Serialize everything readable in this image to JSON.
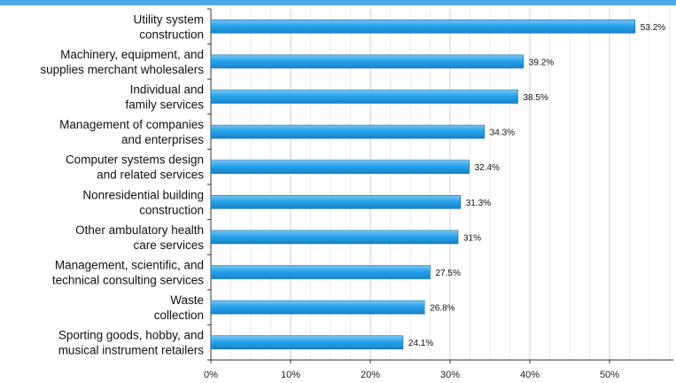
{
  "chart_data": {
    "type": "bar",
    "orientation": "horizontal",
    "categories": [
      [
        "Utility system",
        "construction"
      ],
      [
        "Machinery, equipment, and",
        "supplies merchant wholesalers"
      ],
      [
        "Individual and",
        "family services"
      ],
      [
        "Management of companies",
        "and enterprises"
      ],
      [
        "Computer systems design",
        "and related services"
      ],
      [
        "Nonresidential building",
        "construction"
      ],
      [
        "Other ambulatory health",
        "care services"
      ],
      [
        "Management, scientific, and",
        "technical consulting services"
      ],
      [
        "Waste",
        "collection"
      ],
      [
        "Sporting goods, hobby, and",
        "musical instrument retailers"
      ]
    ],
    "values": [
      53.2,
      39.2,
      38.5,
      34.3,
      32.4,
      31.3,
      31,
      27.5,
      26.8,
      24.1
    ],
    "data_labels": [
      "53.2%",
      "39.2%",
      "38.5%",
      "34.3%",
      "32.4%",
      "31.3%",
      "31%",
      "27.5%",
      "26.8%",
      "24.1%"
    ],
    "x_ticks": [
      "0%",
      "10%",
      "20%",
      "30%",
      "40%",
      "50%"
    ],
    "xlim": [
      0,
      58
    ],
    "grid": "vertical",
    "legend": "none",
    "bar_color": "#1e9ae6",
    "bar_highlight": "#7cc6f4",
    "accent_top_bar": "#4aa6e8"
  }
}
